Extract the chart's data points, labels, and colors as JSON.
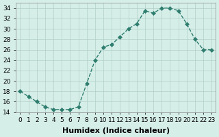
{
  "x": [
    0,
    1,
    2,
    3,
    4,
    5,
    6,
    7,
    8,
    9,
    10,
    11,
    12,
    13,
    14,
    15,
    16,
    17,
    18,
    19,
    20,
    21,
    22,
    23
  ],
  "y": [
    18,
    17,
    16,
    15,
    14.5,
    14.5,
    14.5,
    15,
    19.5,
    24,
    26.5,
    27,
    28.5,
    30,
    31,
    33.5,
    33,
    34,
    34,
    33.5,
    31,
    28,
    26,
    26
  ],
  "line_color": "#2e7d6e",
  "marker": "D",
  "marker_size": 3,
  "bg_color": "#d6eee8",
  "grid_color": "#b0cfc8",
  "xlabel": "Humidex (Indice chaleur)",
  "ylim": [
    14,
    35
  ],
  "xlim": [
    -0.5,
    23.5
  ],
  "yticks": [
    14,
    16,
    18,
    20,
    22,
    24,
    26,
    28,
    30,
    32,
    34
  ],
  "xticks": [
    0,
    1,
    2,
    3,
    4,
    5,
    6,
    7,
    8,
    9,
    10,
    11,
    12,
    13,
    14,
    15,
    16,
    17,
    18,
    19,
    20,
    21,
    22,
    23
  ],
  "xlabel_fontsize": 8,
  "tick_fontsize": 6.5
}
